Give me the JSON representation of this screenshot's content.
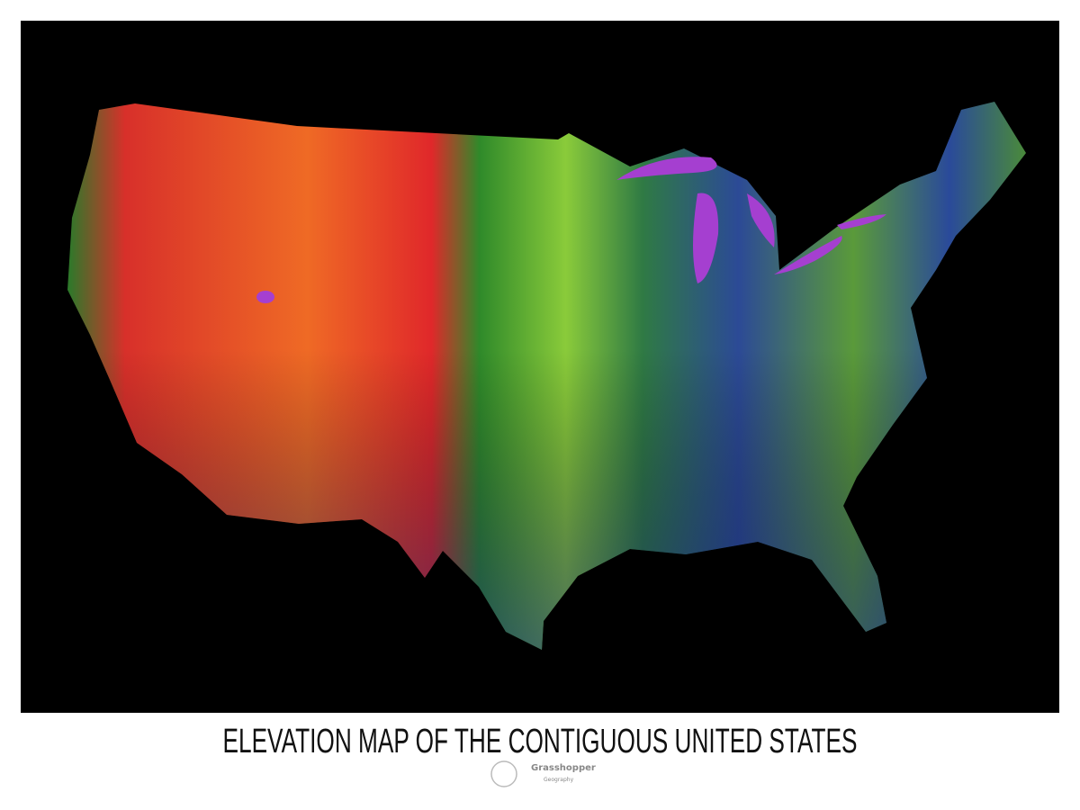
{
  "title": "ELEVATION MAP OF THE CONTIGUOUS UNITED STATES",
  "logo": {
    "name": "Grasshopper",
    "subtitle": "Geography"
  }
}
